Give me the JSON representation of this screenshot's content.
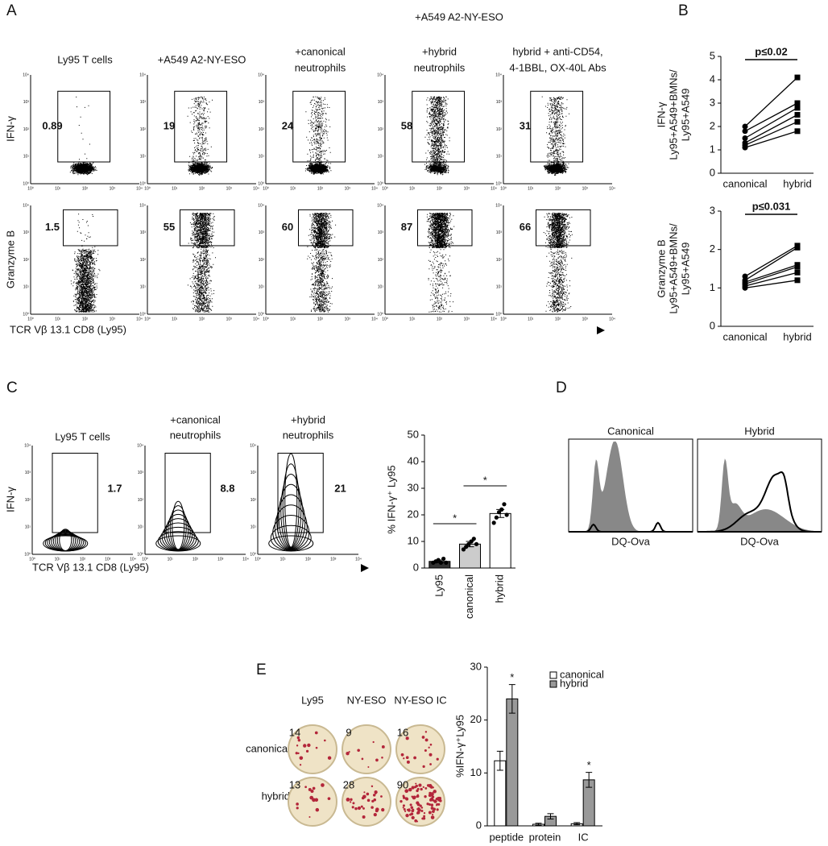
{
  "panel_a": {
    "label": "A",
    "header": "+A549 A2-NY-ESO",
    "columns": [
      [
        "Ly95 T cells"
      ],
      [
        "+A549 A2-NY-ESO"
      ],
      [
        "+canonical",
        "neutrophils"
      ],
      [
        "+hybrid",
        "neutrophils"
      ],
      [
        "hybrid + anti-CD54,",
        "4-1BBL, OX-40L Abs"
      ]
    ],
    "row_labels": [
      "IFN-γ",
      "Granzyme B"
    ],
    "x_label": "TCR Vβ 13.1 CD8 (Ly95)",
    "axis_ticks": [
      "10⁰",
      "10¹",
      "10²",
      "10³",
      "10⁴"
    ],
    "gates": [
      [
        0.89,
        19,
        24,
        58,
        31
      ],
      [
        1.5,
        55,
        60,
        87,
        66
      ]
    ]
  },
  "panel_c_flow": {
    "label": "C",
    "columns": [
      [
        "Ly95 T cells"
      ],
      [
        "+canonical",
        "neutrophils"
      ],
      [
        "+hybrid",
        "neutrophils"
      ]
    ],
    "gates": [
      1.7,
      8.8,
      21
    ],
    "y_label": "IFN-γ",
    "x_label": "TCR Vβ 13.1 CD8 (Ly95)",
    "axis_ticks": [
      "10⁰",
      "10¹",
      "10²",
      "10³",
      "10⁴"
    ]
  },
  "panel_d": {
    "label": "D",
    "titles": [
      "Canonical",
      "Hybrid"
    ],
    "x_label": "DQ-Ova"
  },
  "panel_e_plates": {
    "label": "E",
    "columns": [
      "Ly95",
      "NY-ESO",
      "NY-ESO IC"
    ],
    "rows": [
      "canonical",
      "hybrid"
    ],
    "counts": [
      [
        14,
        9,
        16
      ],
      [
        13,
        28,
        90
      ]
    ]
  },
  "chart_data": [
    {
      "type": "paired",
      "panel_label": "B",
      "title": "p≤0.02",
      "ylabel": [
        "IFN-γ",
        "Ly95+A549+BMNs/",
        "Ly95+A549"
      ],
      "categories": [
        "canonical",
        "hybrid"
      ],
      "ylim": [
        0,
        5
      ],
      "yticks": [
        0,
        1,
        2,
        3,
        4,
        5
      ],
      "color": "#000000",
      "series": [
        {
          "values": [
            2.0,
            4.1
          ]
        },
        {
          "values": [
            1.8,
            3.0
          ]
        },
        {
          "values": [
            1.5,
            2.8
          ]
        },
        {
          "values": [
            1.3,
            2.5
          ]
        },
        {
          "values": [
            1.2,
            2.2
          ]
        },
        {
          "values": [
            1.1,
            1.8
          ]
        }
      ]
    },
    {
      "type": "paired",
      "title": "p≤0.031",
      "ylabel": [
        "Granzyme B",
        "Ly95+A549+BMNs/",
        "Ly95+A549"
      ],
      "categories": [
        "canonical",
        "hybrid"
      ],
      "ylim": [
        0,
        3
      ],
      "yticks": [
        0,
        1,
        2,
        3
      ],
      "color": "#000000",
      "series": [
        {
          "values": [
            1.3,
            2.1
          ]
        },
        {
          "values": [
            1.2,
            2.05
          ]
        },
        {
          "values": [
            1.15,
            1.6
          ]
        },
        {
          "values": [
            1.1,
            1.55
          ]
        },
        {
          "values": [
            1.05,
            1.4
          ]
        },
        {
          "values": [
            1.0,
            1.2
          ]
        }
      ]
    },
    {
      "type": "bar",
      "ylabel": "% IFN-γ⁺ Ly95",
      "categories": [
        "Ly95",
        "canonical",
        "hybrid"
      ],
      "values": [
        2.5,
        9,
        20.5
      ],
      "errors": [
        0.5,
        1,
        1.5
      ],
      "colors": [
        "#333333",
        "#cccccc",
        "#ffffff"
      ],
      "points": [
        [
          2,
          2.5,
          3,
          2,
          3.5,
          2
        ],
        [
          7,
          8,
          9,
          10,
          11,
          9
        ],
        [
          17,
          19,
          21,
          22,
          24,
          20
        ]
      ],
      "ylim": [
        0,
        50
      ],
      "yticks": [
        0,
        10,
        20,
        30,
        40,
        50
      ],
      "annotations": [
        "*",
        "*"
      ]
    },
    {
      "type": "grouped-bar",
      "ylabel": "%IFN-γ⁺Ly95",
      "categories": [
        "peptide",
        "protein",
        "IC"
      ],
      "series": [
        {
          "name": "canonical",
          "color": "#ffffff",
          "values": [
            12.3,
            0.3,
            0.4
          ],
          "errors": [
            1.8,
            0.2,
            0.2
          ]
        },
        {
          "name": "hybrid",
          "color": "#999999",
          "values": [
            24,
            1.8,
            8.7
          ],
          "errors": [
            2.7,
            0.5,
            1.4
          ]
        }
      ],
      "ylim": [
        0,
        30
      ],
      "yticks": [
        0,
        10,
        20,
        30
      ],
      "annotations": [
        "*",
        "*"
      ]
    }
  ]
}
